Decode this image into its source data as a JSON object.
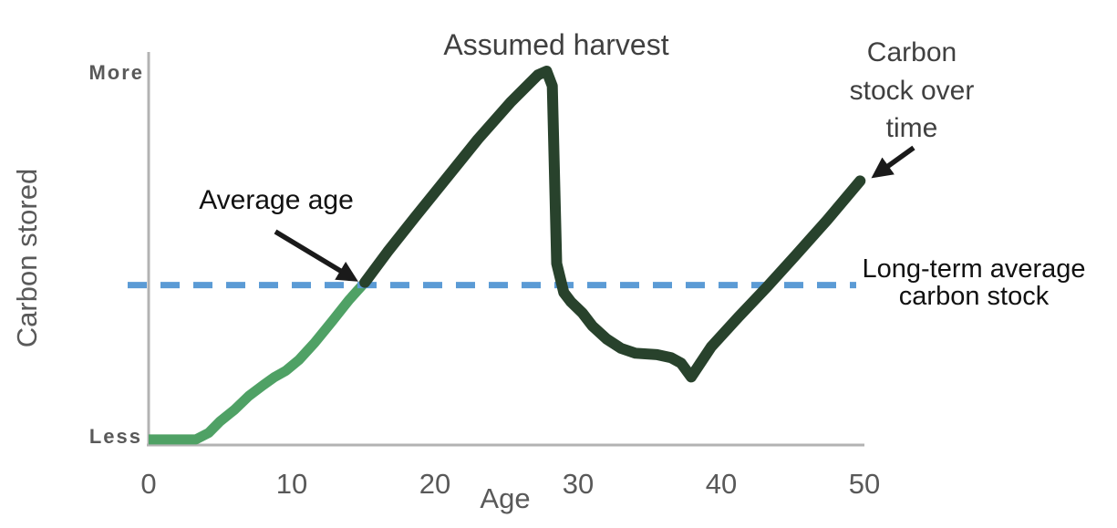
{
  "figure": {
    "y_axis": {
      "label": "Carbon stored",
      "top_label": "More",
      "bottom_label": "Less"
    },
    "x_axis": {
      "label": "Age"
    },
    "annotations": {
      "assumed_harvest": "Assumed harvest",
      "average_age": "Average age",
      "carbon_stock_line1": "Carbon",
      "carbon_stock_line2": "stock over",
      "carbon_stock_line3": "time",
      "long_term_line1": "Long-term average",
      "long_term_line2": "carbon stock"
    },
    "colors": {
      "young_segment_green": "#4fa165",
      "mature_segment_green": "#28422c",
      "average_line_blue": "#5b9bd5",
      "axis_gray": "#b3b3b3",
      "tick_text_gray": "#595959",
      "annotation_gray": "#404040",
      "annotation_black": "#111111",
      "arrow_black": "#1a1a1a"
    }
  },
  "chart_data": {
    "type": "line",
    "title": "",
    "xlabel": "Age",
    "ylabel": "Carbon stored",
    "x_ticks": [
      0,
      10,
      20,
      30,
      40,
      50
    ],
    "xlim": [
      0,
      50
    ],
    "y_scale_note": "qualitative axis: 0 = Less, 100 = More",
    "ylim": [
      0,
      100
    ],
    "grid": false,
    "legend": false,
    "long_term_average": 42.5,
    "dashed_line_label": "Long-term average carbon stock",
    "annotations_meaning": {
      "assumed_harvest_age": 28,
      "average_age": 15,
      "trough_age": 38
    },
    "series": [
      {
        "id": "young",
        "name": "Carbon stock before average age (light green segment)",
        "color": "#4fa165",
        "x": [
          0,
          2,
          3.3,
          4.2,
          5,
          6,
          7,
          8,
          8.8,
          9.6,
          10.5,
          11.6,
          12.8,
          14,
          15.1
        ],
        "values": [
          1,
          1,
          1,
          2.8,
          5.9,
          9,
          12.7,
          15.6,
          17.8,
          19.5,
          22.4,
          27,
          32.7,
          38.5,
          43.2
        ]
      },
      {
        "id": "mature",
        "name": "Carbon stock over time (dark green segment)",
        "color": "#28422c",
        "x": [
          15.1,
          16.7,
          18.6,
          20.8,
          23,
          25.3,
          27.2,
          27.8,
          28.2,
          28.5,
          29,
          29.5,
          30.3,
          31,
          32,
          33,
          34,
          35.5,
          36.5,
          37.2,
          37.9,
          39.3,
          41.2,
          43.2,
          45.2,
          47.4,
          49.7
        ],
        "values": [
          43.2,
          51.5,
          60.7,
          71.2,
          81.7,
          91.7,
          99,
          100,
          96,
          48.3,
          40.5,
          38,
          35,
          31.5,
          28,
          25.5,
          24.2,
          23.8,
          23,
          21.5,
          17.8,
          25.9,
          33.9,
          42,
          50.5,
          60,
          70.5
        ]
      }
    ]
  }
}
